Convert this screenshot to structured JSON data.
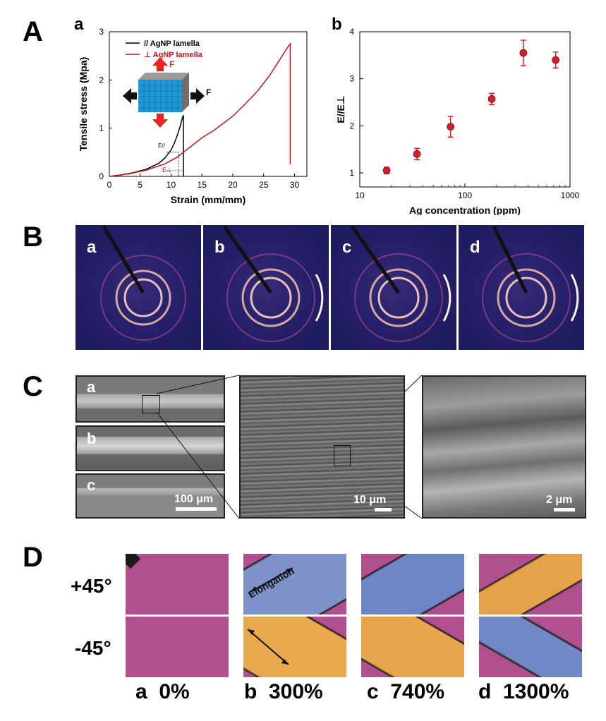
{
  "panels": {
    "A": "A",
    "B": "B",
    "C": "C",
    "D": "D"
  },
  "panelA": {
    "a": {
      "label": "a",
      "legend": [
        "// AgNP lamella",
        "⊥ AgNP lamella"
      ],
      "force_label": "F",
      "e_par": "E//",
      "e_perp": "E⊥"
    },
    "b": {
      "label": "b"
    }
  },
  "panelB": {
    "labels": [
      "a",
      "b",
      "c",
      "d"
    ]
  },
  "panelC": {
    "labels": [
      "a",
      "b",
      "c"
    ],
    "scale_100": "100 μm",
    "scale_10": "10 μm",
    "scale_2": "2 μm"
  },
  "panelD": {
    "rows": [
      "+45°",
      "-45°"
    ],
    "cols": [
      "a  0%",
      "b  300%",
      "c  740%",
      "d  1300%"
    ],
    "elongation": "Elongation"
  },
  "chart_data": [
    {
      "type": "line",
      "xlabel": "Strain (mm/mm)",
      "ylabel": "Tensile stress (Mpa)",
      "xlim": [
        0,
        32
      ],
      "ylim": [
        0,
        3
      ],
      "xticks": [
        "0",
        "5",
        "10",
        "15",
        "20",
        "25",
        "30"
      ],
      "yticks": [
        "0",
        "1",
        "2",
        "3"
      ],
      "legend_position": "top-left",
      "series": [
        {
          "name": "// AgNP lamella",
          "color": "#000000",
          "x": [
            0,
            2,
            4,
            6,
            8,
            9,
            10,
            10.5,
            11,
            11.5,
            11.8,
            12,
            12
          ],
          "y": [
            0,
            0.03,
            0.08,
            0.15,
            0.27,
            0.38,
            0.55,
            0.68,
            0.85,
            1.05,
            1.2,
            1.27,
            0.0
          ]
        },
        {
          "name": "⊥ AgNP lamella",
          "color": "#c8141e",
          "x": [
            0,
            3,
            6,
            9,
            11,
            12,
            13,
            15,
            17,
            20,
            22,
            24,
            26,
            27,
            28,
            29,
            29.3,
            29.3
          ],
          "y": [
            0,
            0.05,
            0.13,
            0.26,
            0.4,
            0.5,
            0.6,
            0.8,
            0.96,
            1.25,
            1.5,
            1.77,
            2.1,
            2.3,
            2.5,
            2.7,
            2.75,
            0.25
          ]
        }
      ]
    },
    {
      "type": "scatter",
      "xlabel": "Ag concentration (ppm)",
      "ylabel": "E//E⊥",
      "xscale": "log",
      "xlim": [
        10,
        1000
      ],
      "ylim": [
        0.7,
        4
      ],
      "xticks": [
        "10",
        "100",
        "1000"
      ],
      "yticks": [
        "1",
        "2",
        "3",
        "4"
      ],
      "color": "#d21e28",
      "points": [
        {
          "x": 18,
          "y": 1.05,
          "err": 0.07
        },
        {
          "x": 35,
          "y": 1.4,
          "err": 0.12
        },
        {
          "x": 73,
          "y": 1.98,
          "err": 0.22
        },
        {
          "x": 180,
          "y": 2.57,
          "err": 0.12
        },
        {
          "x": 360,
          "y": 3.55,
          "err": 0.27
        },
        {
          "x": 730,
          "y": 3.4,
          "err": 0.17
        }
      ]
    }
  ]
}
